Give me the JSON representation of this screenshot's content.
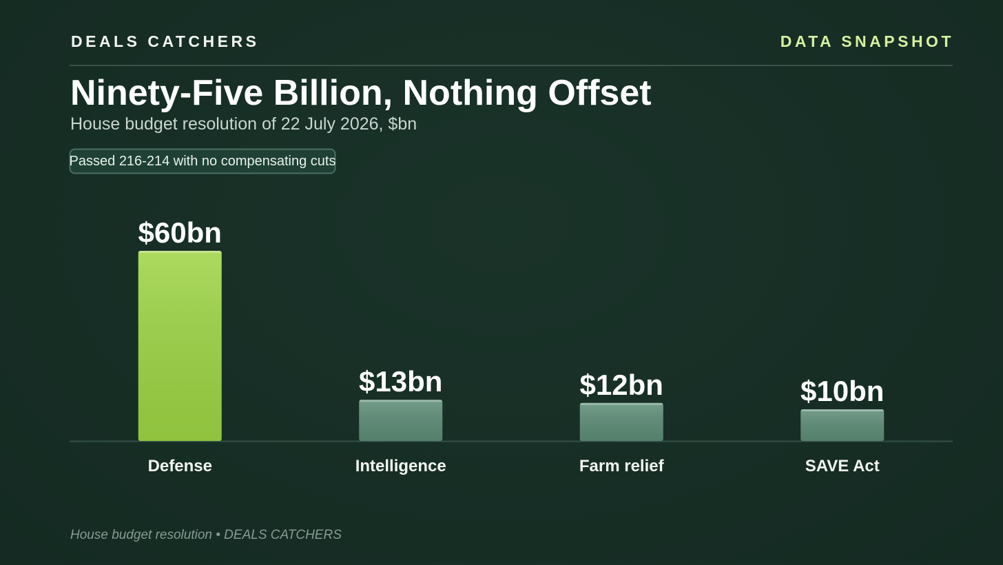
{
  "header": {
    "brand": "DEALS CATCHERS",
    "tag": "DATA SNAPSHOT"
  },
  "chart_data": {
    "type": "bar",
    "title": "Ninety-Five Billion, Nothing Offset",
    "subtitle": "House budget resolution of 22 July 2026, $bn",
    "annotation": "Passed 216-214 with no compensating cuts",
    "categories": [
      "Defense",
      "Intelligence",
      "Farm relief",
      "SAVE Act"
    ],
    "values": [
      60,
      13,
      12,
      10
    ],
    "value_labels": [
      "$60bn",
      "$13bn",
      "$12bn",
      "$10bn"
    ],
    "colors": [
      "#9dd444",
      "#5c8c76",
      "#5c8c76",
      "#5c8c76"
    ]
  },
  "footer": "House budget resolution • DEALS CATCHERS"
}
